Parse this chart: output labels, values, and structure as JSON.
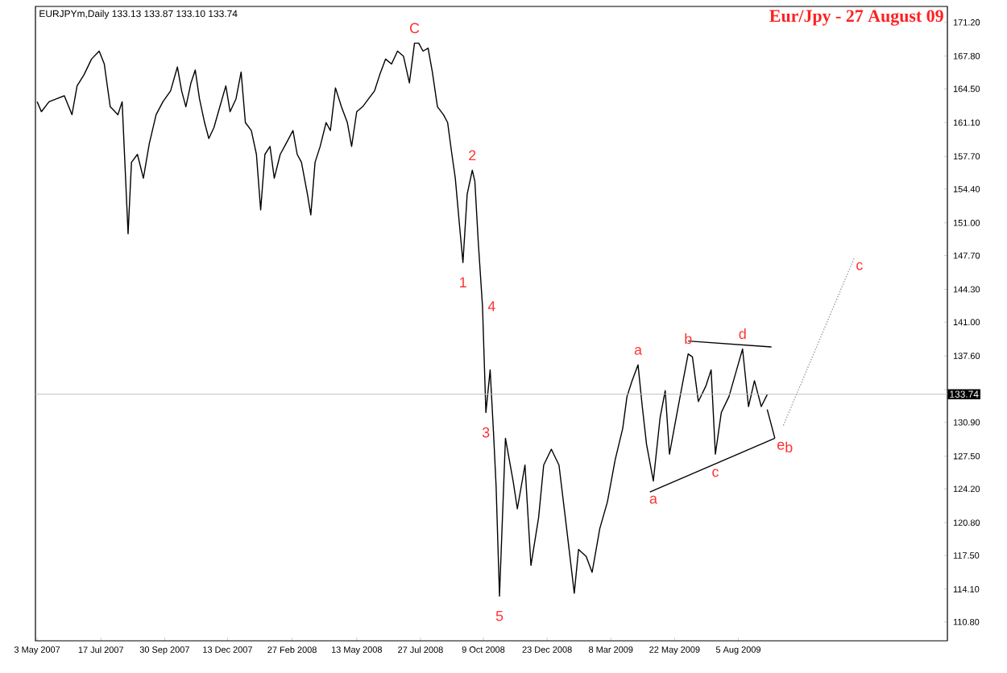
{
  "chart_data": {
    "type": "line",
    "title": "Eur/Jpy - 27 August 09",
    "subtitle": "EURJPYm,Daily  133.13 133.87 133.10 133.74",
    "x": [
      "2007-05-03",
      "2007-05-08",
      "2007-05-17",
      "2007-05-26",
      "2007-06-04",
      "2007-06-13",
      "2007-06-19",
      "2007-06-27",
      "2007-07-06",
      "2007-07-15",
      "2007-07-21",
      "2007-07-28",
      "2007-08-06",
      "2007-08-11",
      "2007-08-18",
      "2007-08-22",
      "2007-08-29",
      "2007-09-05",
      "2007-09-12",
      "2007-09-20",
      "2007-09-28",
      "2007-10-07",
      "2007-10-15",
      "2007-10-20",
      "2007-10-25",
      "2007-10-31",
      "2007-11-05",
      "2007-11-10",
      "2007-11-16",
      "2007-11-21",
      "2007-11-27",
      "2007-12-04",
      "2007-12-11",
      "2007-12-16",
      "2007-12-23",
      "2007-12-29",
      "2008-01-03",
      "2008-01-10",
      "2008-01-16",
      "2008-01-21",
      "2008-01-26",
      "2008-02-01",
      "2008-02-06",
      "2008-02-13",
      "2008-02-20",
      "2008-02-28",
      "2008-03-04",
      "2008-03-09",
      "2008-03-16",
      "2008-03-20",
      "2008-03-25",
      "2008-03-31",
      "2008-04-07",
      "2008-04-12",
      "2008-04-18",
      "2008-04-25",
      "2008-05-02",
      "2008-05-07",
      "2008-05-13",
      "2008-05-20",
      "2008-05-27",
      "2008-06-03",
      "2008-06-09",
      "2008-06-16",
      "2008-06-23",
      "2008-06-30",
      "2008-07-07",
      "2008-07-14",
      "2008-07-20",
      "2008-07-25",
      "2008-07-30",
      "2008-08-05",
      "2008-08-10",
      "2008-08-16",
      "2008-08-23",
      "2008-08-28",
      "2008-09-02",
      "2008-09-06",
      "2008-09-11",
      "2008-09-15",
      "2008-09-20",
      "2008-09-26",
      "2008-09-29",
      "2008-10-03",
      "2008-10-08",
      "2008-10-12",
      "2008-10-17",
      "2008-10-21",
      "2008-10-24",
      "2008-10-28",
      "2008-11-04",
      "2008-11-13",
      "2008-11-18",
      "2008-11-27",
      "2008-12-04",
      "2008-12-13",
      "2008-12-19",
      "2008-12-28",
      "2009-01-06",
      "2009-01-15",
      "2009-01-24",
      "2009-01-29",
      "2009-02-07",
      "2009-02-14",
      "2009-02-23",
      "2009-03-04",
      "2009-03-13",
      "2009-03-22",
      "2009-03-27",
      "2009-04-02",
      "2009-04-09",
      "2009-04-14",
      "2009-04-19",
      "2009-04-27",
      "2009-05-05",
      "2009-05-11",
      "2009-05-16",
      "2009-05-25",
      "2009-06-01",
      "2009-06-07",
      "2009-06-12",
      "2009-06-19",
      "2009-06-28",
      "2009-07-04",
      "2009-07-09",
      "2009-07-16",
      "2009-07-25",
      "2009-08-03",
      "2009-08-10",
      "2009-08-17",
      "2009-08-24",
      "2009-09-01",
      "2009-09-08"
    ],
    "series": [
      {
        "color": "#000000",
        "line_style": "solid",
        "values": [
          163.2,
          162.2,
          163.2,
          163.5,
          163.8,
          161.9,
          164.8,
          165.9,
          167.5,
          168.3,
          167.0,
          162.7,
          161.9,
          163.2,
          149.9,
          157.1,
          157.9,
          155.5,
          159.0,
          161.9,
          163.2,
          164.3,
          166.7,
          164.3,
          162.7,
          165.1,
          166.4,
          163.5,
          161.1,
          159.5,
          160.6,
          162.7,
          164.8,
          162.2,
          163.5,
          166.2,
          161.1,
          160.3,
          157.9,
          152.3,
          157.9,
          158.7,
          155.5,
          157.9,
          159.0,
          160.3,
          157.9,
          157.1,
          153.9,
          151.8,
          157.1,
          158.7,
          161.1,
          160.3,
          164.6,
          162.7,
          161.1,
          158.7,
          162.2,
          162.7,
          163.5,
          164.3,
          165.9,
          167.5,
          167.0,
          168.3,
          167.8,
          165.1,
          169.1,
          169.1,
          168.3,
          168.6,
          166.2,
          162.7,
          161.9,
          161.1,
          157.9,
          155.5,
          150.7,
          147.0,
          153.9,
          156.3,
          155.2,
          149.1,
          142.6,
          131.9,
          136.2,
          129.8,
          124.5,
          113.4,
          129.3,
          125.0,
          122.2,
          126.6,
          116.5,
          121.3,
          126.6,
          128.2,
          126.6,
          120.2,
          113.7,
          118.1,
          117.4,
          115.8,
          120.2,
          122.9,
          127.1,
          130.3,
          133.5,
          135.1,
          136.7,
          132.5,
          128.7,
          125.0,
          131.4,
          134.1,
          127.7,
          131.9,
          135.1,
          137.8,
          137.5,
          133.0,
          134.6,
          136.2,
          127.7,
          131.9,
          133.5,
          136.2,
          138.3,
          132.5,
          135.1,
          132.5,
          133.7
        ]
      },
      {
        "color": "#000000",
        "line_style": "solid",
        "x": [
          "2009-06-07",
          "2009-09-13"
        ],
        "values": [
          139.1,
          138.5
        ]
      },
      {
        "color": "#000000",
        "line_style": "solid",
        "x": [
          "2009-04-23",
          "2009-09-17"
        ],
        "values": [
          123.9,
          129.3
        ]
      },
      {
        "color": "#000000",
        "line_style": "solid",
        "x": [
          "2009-09-08",
          "2009-09-17"
        ],
        "values": [
          132.2,
          129.3
        ]
      },
      {
        "color": "#999999",
        "line_style": "dotted",
        "x": [
          "2009-09-27",
          "2009-12-19"
        ],
        "values": [
          130.6,
          147.4
        ]
      }
    ],
    "xlim": [
      "2007-05-01",
      "2010-04-08"
    ],
    "xticks": [
      {
        "value": "2007-05-03",
        "label": "3 May 2007"
      },
      {
        "value": "2007-07-17",
        "label": "17 Jul 2007"
      },
      {
        "value": "2007-09-30",
        "label": "30 Sep 2007"
      },
      {
        "value": "2007-12-13",
        "label": "13 Dec 2007"
      },
      {
        "value": "2008-02-27",
        "label": "27 Feb 2008"
      },
      {
        "value": "2008-05-13",
        "label": "13 May 2008"
      },
      {
        "value": "2008-07-27",
        "label": "27 Jul 2008"
      },
      {
        "value": "2008-10-09",
        "label": "9 Oct 2008"
      },
      {
        "value": "2008-12-23",
        "label": "23 Dec 2008"
      },
      {
        "value": "2009-03-08",
        "label": "8 Mar 2009"
      },
      {
        "value": "2009-05-22",
        "label": "22 May 2009"
      },
      {
        "value": "2009-08-05",
        "label": "5 Aug 2009"
      }
    ],
    "ylim": [
      108.9,
      172.8
    ],
    "yticks": [
      {
        "value": 171.2,
        "label": "171.20"
      },
      {
        "value": 167.8,
        "label": "167.80"
      },
      {
        "value": 164.5,
        "label": "164.50"
      },
      {
        "value": 161.1,
        "label": "161.10"
      },
      {
        "value": 157.7,
        "label": "157.70"
      },
      {
        "value": 154.4,
        "label": "154.40"
      },
      {
        "value": 151.0,
        "label": "151.00"
      },
      {
        "value": 147.7,
        "label": "147.70"
      },
      {
        "value": 144.3,
        "label": "144.30"
      },
      {
        "value": 141.0,
        "label": "141.00"
      },
      {
        "value": 137.6,
        "label": "137.60"
      },
      {
        "value": 134.2,
        "label": null
      },
      {
        "value": 130.9,
        "label": "130.90"
      },
      {
        "value": 127.5,
        "label": "127.50"
      },
      {
        "value": 124.2,
        "label": "124.20"
      },
      {
        "value": 120.8,
        "label": "120.80"
      },
      {
        "value": 117.5,
        "label": "117.50"
      },
      {
        "value": 114.1,
        "label": "114.10"
      },
      {
        "value": 110.8,
        "label": "110.80"
      }
    ],
    "ref_lines": [
      {
        "axis": "y",
        "value": 133.74,
        "label": "133.74",
        "color": "#c0c0c0"
      }
    ],
    "annotations": [
      {
        "text": "C",
        "x": "2008-07-20",
        "y": 169.1
      },
      {
        "text": "2",
        "x": "2008-09-26",
        "y": 156.3
      },
      {
        "text": "1",
        "x": "2008-09-15",
        "y": 147.0
      },
      {
        "text": "4",
        "x": "2008-10-08",
        "y": 142.6
      },
      {
        "text": "3",
        "x": "2008-10-12",
        "y": 131.9
      },
      {
        "text": "5",
        "x": "2008-10-28",
        "y": 113.4
      },
      {
        "text": "a",
        "x": "2009-04-09",
        "y": 136.7
      },
      {
        "text": "b",
        "x": "2009-06-07",
        "y": 137.8
      },
      {
        "text": "d",
        "x": "2009-08-10",
        "y": 138.3
      },
      {
        "text": "a",
        "x": "2009-04-27",
        "y": 125.0
      },
      {
        "text": "c",
        "x": "2009-07-09",
        "y": 127.7
      },
      {
        "text": "e",
        "x": "2009-09-17",
        "y": 129.3
      },
      {
        "text": "b",
        "x": "2009-09-17",
        "y": 129.3
      },
      {
        "text": "c",
        "x": "2009-12-19",
        "y": 147.4
      }
    ]
  }
}
